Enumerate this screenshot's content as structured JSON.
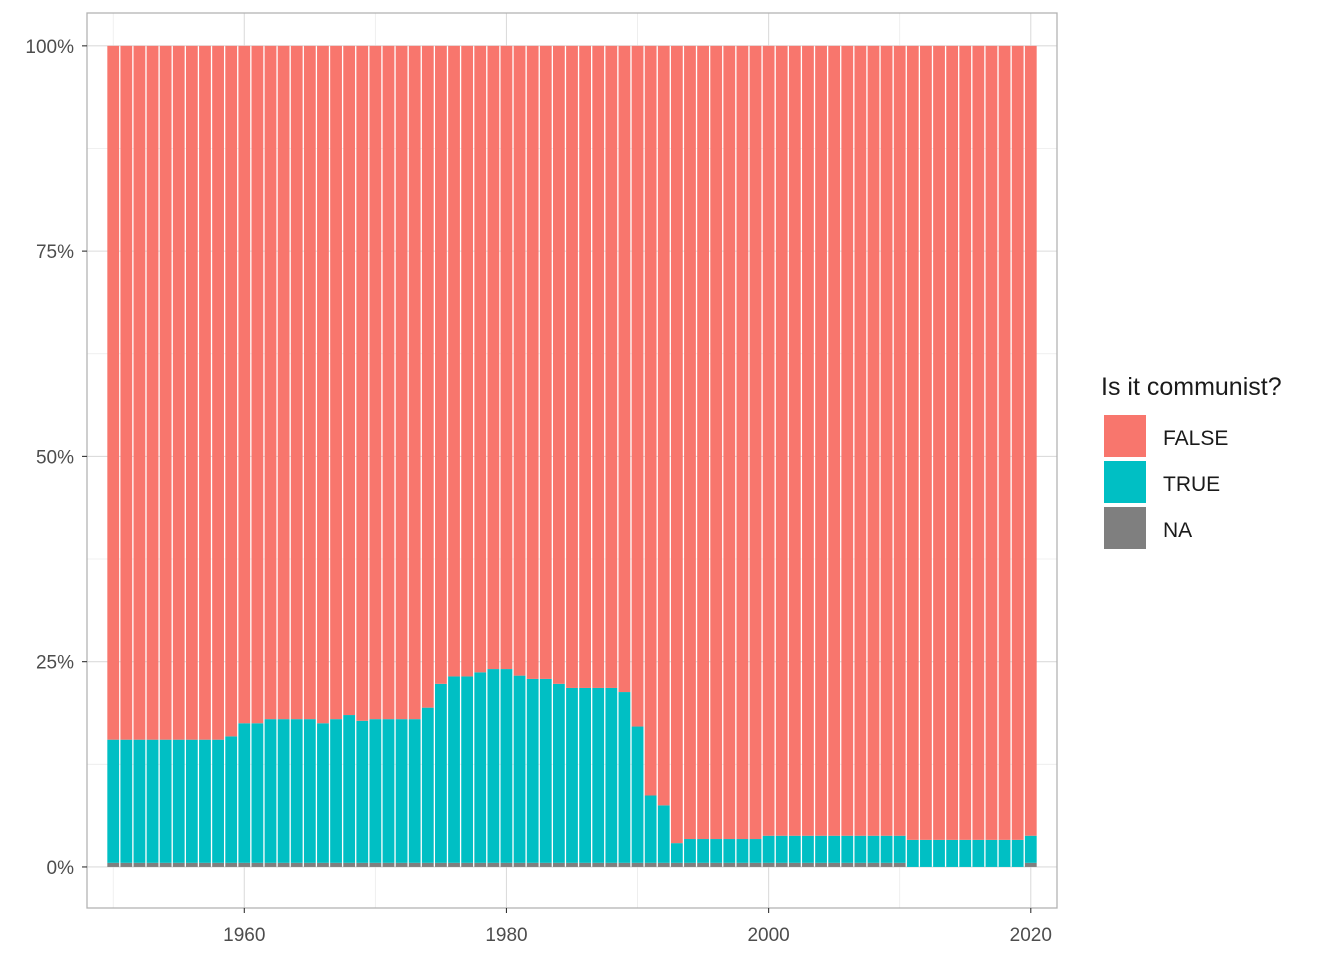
{
  "chart_data": {
    "type": "bar",
    "stacked": true,
    "normalized": true,
    "x_start": 1950,
    "x_end": 2020,
    "x": [
      1950,
      1951,
      1952,
      1953,
      1954,
      1955,
      1956,
      1957,
      1958,
      1959,
      1960,
      1961,
      1962,
      1963,
      1964,
      1965,
      1966,
      1967,
      1968,
      1969,
      1970,
      1971,
      1972,
      1973,
      1974,
      1975,
      1976,
      1977,
      1978,
      1979,
      1980,
      1981,
      1982,
      1983,
      1984,
      1985,
      1986,
      1987,
      1988,
      1989,
      1990,
      1991,
      1992,
      1993,
      1994,
      1995,
      1996,
      1997,
      1998,
      1999,
      2000,
      2001,
      2002,
      2003,
      2004,
      2005,
      2006,
      2007,
      2008,
      2009,
      2010,
      2011,
      2012,
      2013,
      2014,
      2015,
      2016,
      2017,
      2018,
      2019,
      2020
    ],
    "series": [
      {
        "name": "NA",
        "color": "#7f7f7f",
        "values": [
          0.5,
          0.5,
          0.5,
          0.5,
          0.5,
          0.5,
          0.5,
          0.5,
          0.5,
          0.5,
          0.5,
          0.5,
          0.5,
          0.5,
          0.5,
          0.5,
          0.5,
          0.5,
          0.5,
          0.5,
          0.5,
          0.5,
          0.5,
          0.5,
          0.5,
          0.5,
          0.5,
          0.5,
          0.5,
          0.5,
          0.5,
          0.5,
          0.5,
          0.5,
          0.5,
          0.5,
          0.5,
          0.5,
          0.5,
          0.5,
          0.5,
          0.5,
          0.5,
          0.5,
          0.5,
          0.5,
          0.5,
          0.5,
          0.5,
          0.5,
          0.5,
          0.5,
          0.5,
          0.5,
          0.5,
          0.5,
          0.5,
          0.5,
          0.5,
          0.5,
          0.5,
          0,
          0,
          0,
          0,
          0,
          0,
          0,
          0,
          0,
          0.5
        ]
      },
      {
        "name": "TRUE",
        "color": "#00bfc4",
        "values": [
          15.0,
          15.0,
          15.0,
          15.0,
          15.0,
          15.0,
          15.0,
          15.0,
          15.0,
          15.4,
          17.0,
          17.0,
          17.5,
          17.5,
          17.5,
          17.5,
          17.0,
          17.5,
          18.0,
          17.3,
          17.5,
          17.5,
          17.5,
          17.5,
          18.9,
          21.8,
          22.7,
          22.7,
          23.2,
          23.6,
          23.6,
          22.8,
          22.4,
          22.4,
          21.8,
          21.3,
          21.3,
          21.3,
          21.3,
          20.8,
          16.6,
          8.2,
          7.0,
          2.4,
          2.9,
          2.9,
          2.9,
          2.9,
          2.9,
          2.9,
          3.3,
          3.3,
          3.3,
          3.3,
          3.3,
          3.3,
          3.3,
          3.3,
          3.3,
          3.3,
          3.3,
          3.3,
          3.3,
          3.3,
          3.3,
          3.3,
          3.3,
          3.3,
          3.3,
          3.3,
          3.3
        ]
      },
      {
        "name": "FALSE",
        "color": "#f8766d",
        "values": [
          84.5,
          84.5,
          84.5,
          84.5,
          84.5,
          84.5,
          84.5,
          84.5,
          84.5,
          84.1,
          82.5,
          82.5,
          82.0,
          82.0,
          82.0,
          82.0,
          82.5,
          82.0,
          81.5,
          82.2,
          82.0,
          82.0,
          82.0,
          82.0,
          80.6,
          77.7,
          76.8,
          76.8,
          76.3,
          75.9,
          75.9,
          76.7,
          77.1,
          77.1,
          77.7,
          78.2,
          78.2,
          78.2,
          78.2,
          78.7,
          82.9,
          91.3,
          92.5,
          97.1,
          96.6,
          96.6,
          96.6,
          96.6,
          96.6,
          96.6,
          96.2,
          96.2,
          96.2,
          96.2,
          96.2,
          96.2,
          96.2,
          96.2,
          96.2,
          96.2,
          96.2,
          96.7,
          96.7,
          96.7,
          96.7,
          96.7,
          96.7,
          96.7,
          96.7,
          96.7,
          96.2
        ]
      }
    ],
    "xlim": [
      1948,
      2022
    ],
    "ylim": [
      -5,
      104
    ],
    "x_ticks": [
      1960,
      1980,
      2000,
      2020
    ],
    "x_tick_labels": [
      "1960",
      "1980",
      "2000",
      "2020"
    ],
    "y_ticks": [
      0,
      25,
      50,
      75,
      100
    ],
    "y_tick_labels": [
      "0%",
      "25%",
      "50%",
      "75%",
      "100%"
    ],
    "xlabel": "",
    "ylabel": "",
    "grid": true,
    "legend": {
      "title": "Is it communist?",
      "placement": "right",
      "entries": [
        {
          "label": "FALSE",
          "color": "#f8766d"
        },
        {
          "label": "TRUE",
          "color": "#00bfc4"
        },
        {
          "label": "NA",
          "color": "#7f7f7f"
        }
      ]
    }
  }
}
